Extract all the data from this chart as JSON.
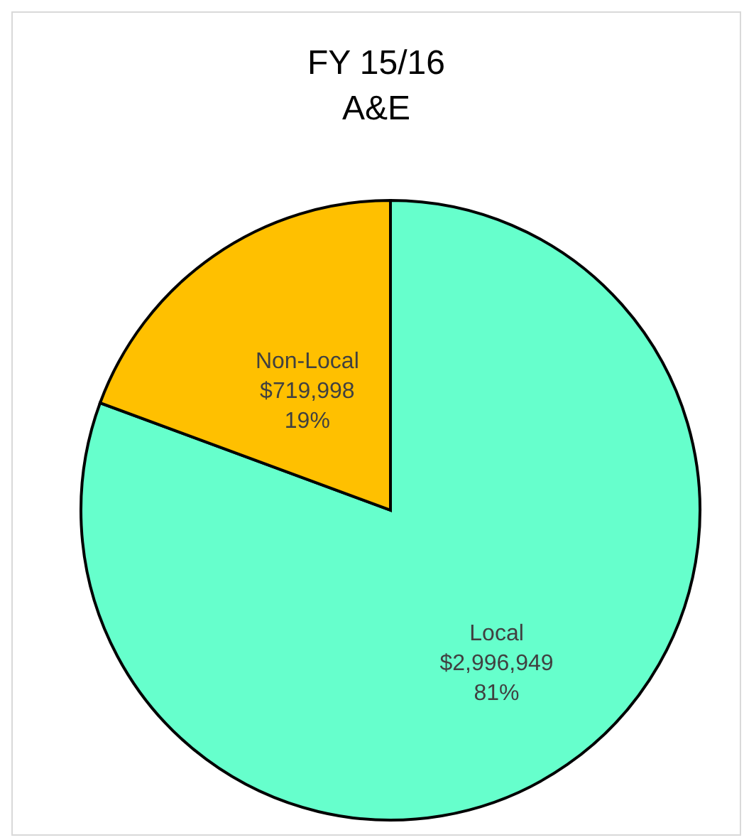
{
  "chart_data": {
    "type": "pie",
    "title": "FY 15/16\nA&E",
    "categories": [
      "Local",
      "Non-Local"
    ],
    "values": [
      2996949,
      719998
    ],
    "value_labels": [
      "$2,996,949\n81%",
      "$719,998\n19%"
    ],
    "colors": [
      "#66ffcc",
      "#ffc000"
    ],
    "legend": false
  }
}
